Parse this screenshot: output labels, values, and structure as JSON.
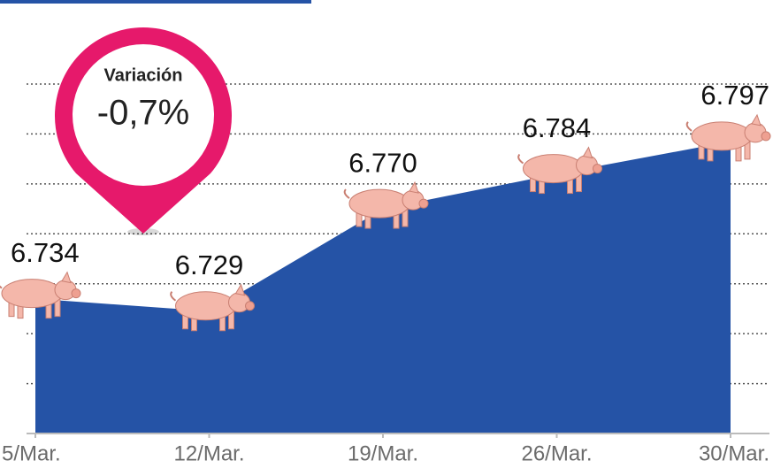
{
  "chart_data": {
    "type": "area",
    "categories": [
      "5/Mar.",
      "12/Mar.",
      "19/Mar.",
      "26/Mar.",
      "30/Mar."
    ],
    "values": [
      6734,
      6729,
      6770,
      6784,
      6797
    ],
    "value_labels": [
      "6.734",
      "6.729",
      "6.770",
      "6.784",
      "6.797"
    ],
    "color": "#2553a6",
    "ylim": [
      6680,
      6820
    ],
    "yticks": [
      6700,
      6720,
      6740,
      6760,
      6780,
      6800,
      6820
    ],
    "grid": true,
    "annotation": {
      "title": "Variación",
      "text": "-0,7%"
    }
  }
}
